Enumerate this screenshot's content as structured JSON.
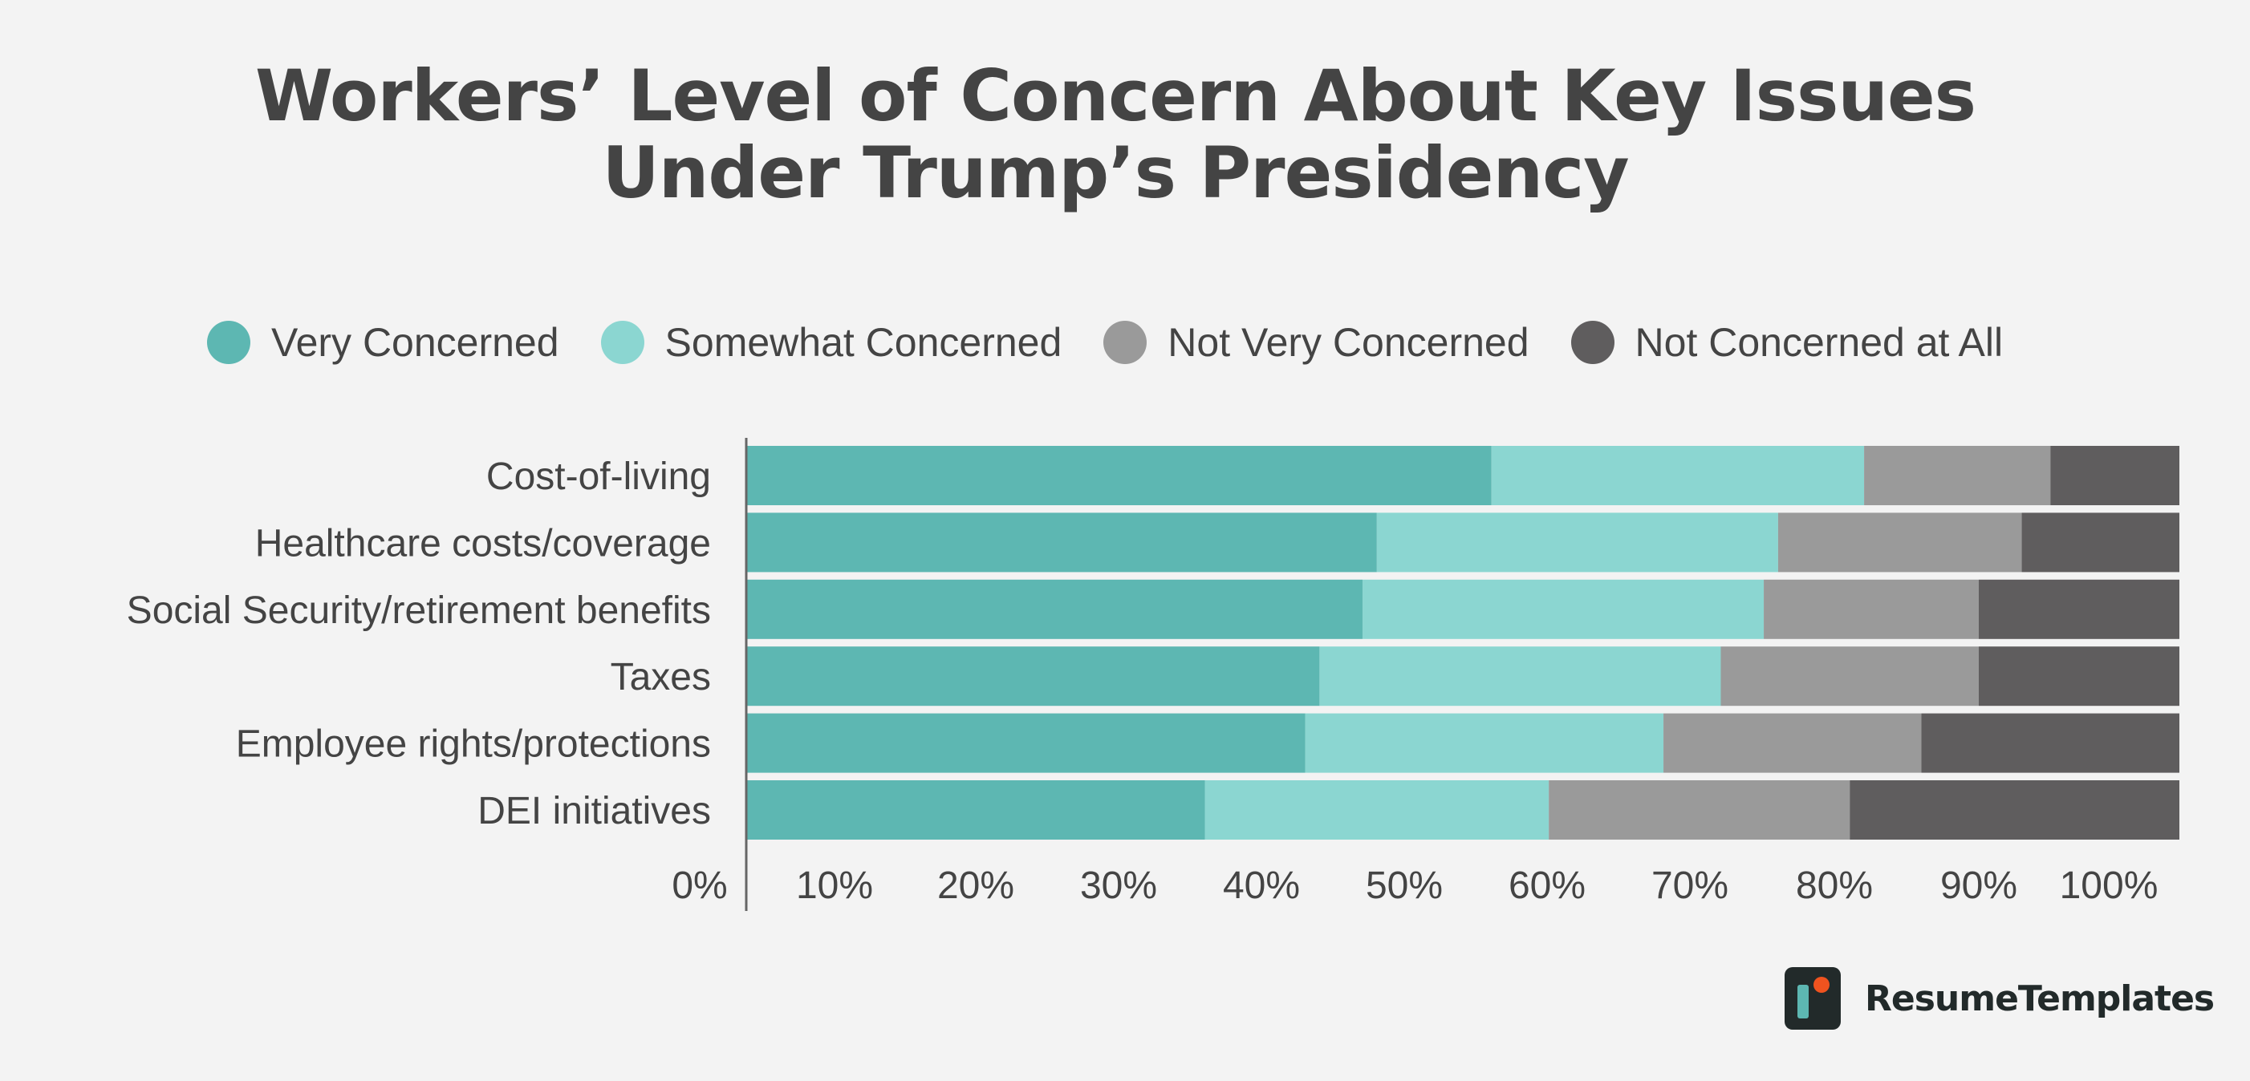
{
  "chart_data": {
    "type": "bar",
    "orientation": "horizontal",
    "stacked": true,
    "title": [
      "Workers’ Level of Concern About Key Issues",
      "Under Trump’s Presidency"
    ],
    "categories": [
      "Cost-of-living",
      "Healthcare costs/coverage",
      "Social Security/retirement benefits",
      "Taxes",
      "Employee rights/protections",
      "DEI initiatives"
    ],
    "series": [
      {
        "name": "Very Concerned",
        "color": "#5db7b2",
        "values": [
          52,
          44,
          43,
          40,
          39,
          32
        ]
      },
      {
        "name": "Somewhat Concerned",
        "color": "#8bd6d1",
        "values": [
          26,
          28,
          28,
          28,
          25,
          24
        ]
      },
      {
        "name": "Not Very Concerned",
        "color": "#9a9a9a",
        "values": [
          13,
          17,
          15,
          18,
          18,
          21
        ]
      },
      {
        "name": "Not Concerned at All",
        "color": "#5f5d5e",
        "values": [
          9,
          11,
          14,
          14,
          18,
          23
        ]
      }
    ],
    "xlim": [
      0,
      100
    ],
    "xticks": [
      "0%",
      "10%",
      "20%",
      "30%",
      "40%",
      "50%",
      "60%",
      "70%",
      "80%",
      "90%",
      "100%"
    ],
    "legend": "top",
    "grid": false
  },
  "brand": {
    "name": "ResumeTemplates"
  }
}
